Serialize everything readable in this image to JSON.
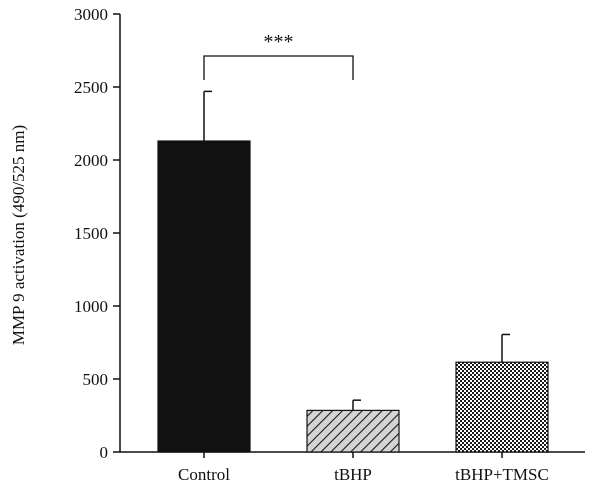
{
  "chart_data": {
    "type": "bar",
    "categories": [
      "Control",
      "tBHP",
      "tBHP+TMSC"
    ],
    "values": [
      2130,
      285,
      615
    ],
    "errors": [
      340,
      70,
      190
    ],
    "bar_styles": [
      "solid-black",
      "diagonal-hatch",
      "crosshatch"
    ],
    "title": "",
    "xlabel": "",
    "ylabel": "MMP 9 activation (490/525 nm)",
    "ylim": [
      0,
      3000
    ],
    "yticks": [
      0,
      500,
      1000,
      1500,
      2000,
      2500,
      3000
    ],
    "grid": false,
    "significance": [
      {
        "from": "Control",
        "to": "tBHP",
        "label": "***"
      }
    ]
  }
}
